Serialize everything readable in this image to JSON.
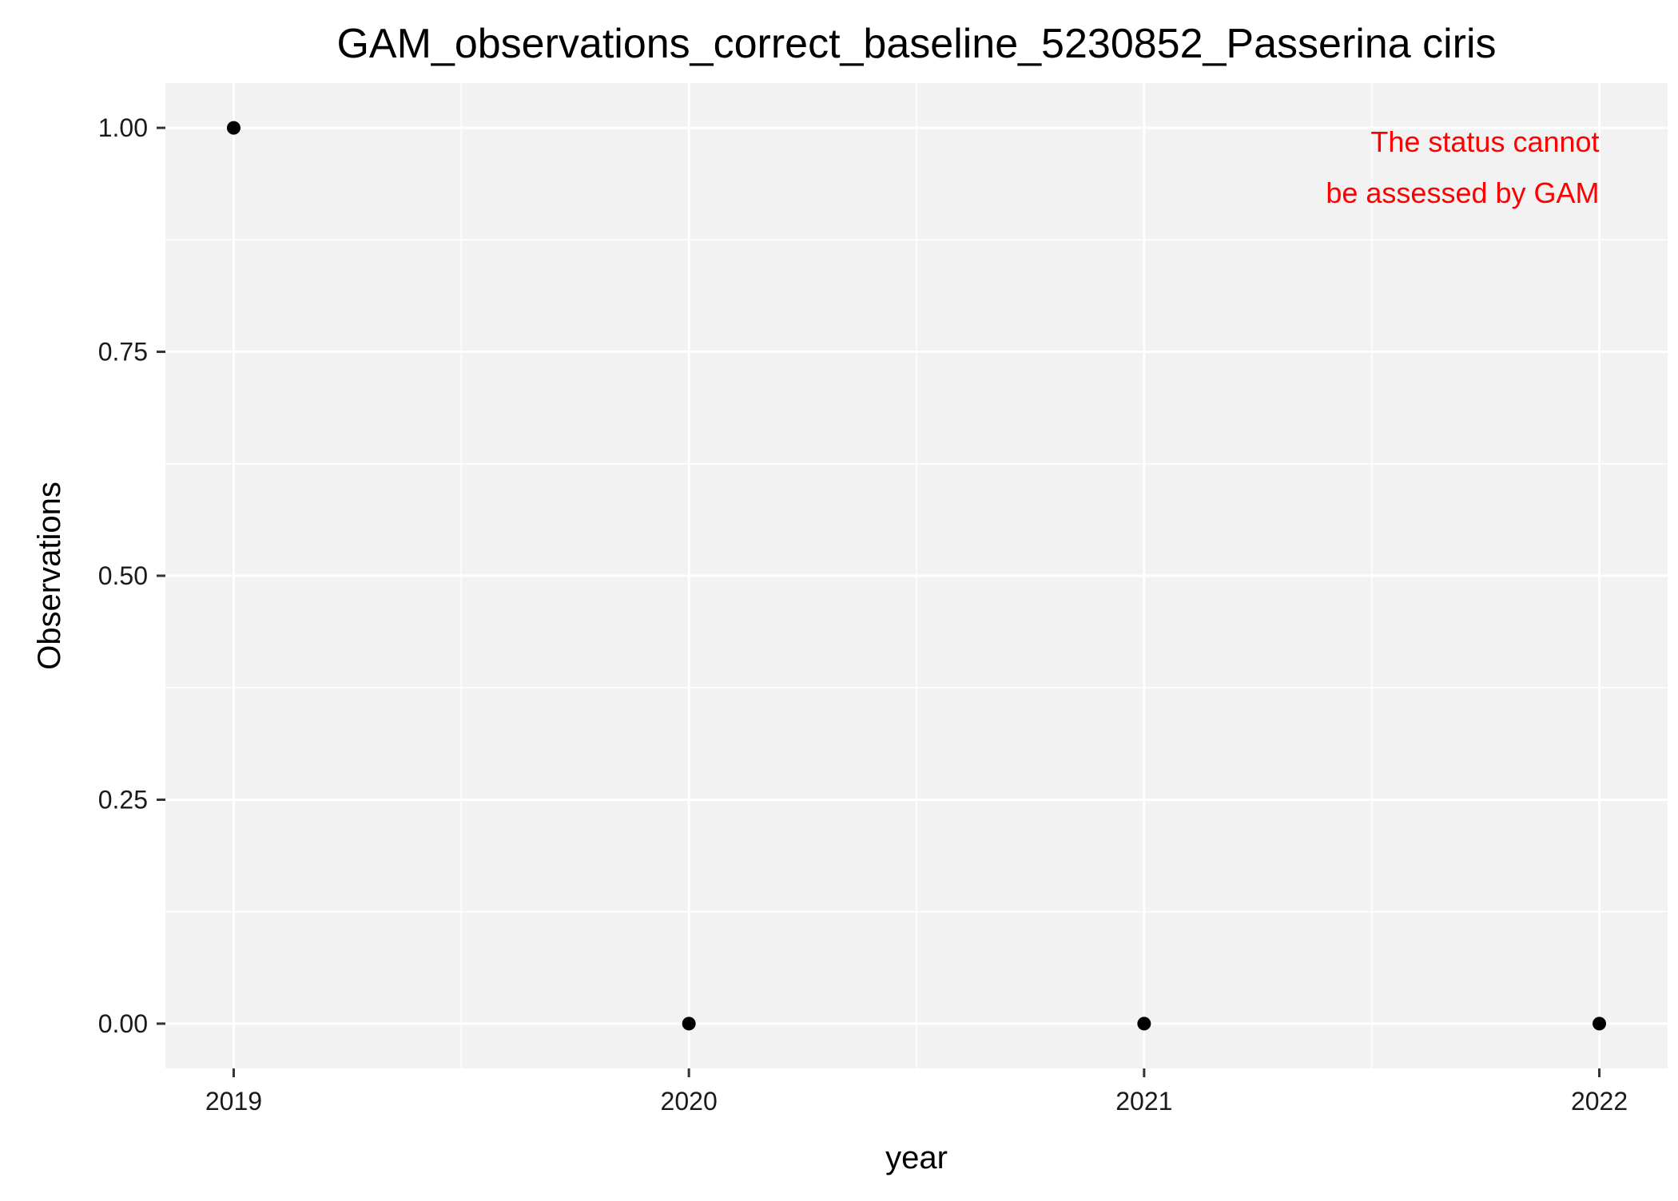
{
  "chart_data": {
    "type": "scatter",
    "title": "GAM_observations_correct_baseline_5230852_Passerina ciris",
    "xlabel": "year",
    "ylabel": "Observations",
    "x": [
      2019,
      2020,
      2021,
      2022
    ],
    "y": [
      1,
      0,
      0,
      0
    ],
    "xlim": [
      2018.85,
      2022.15
    ],
    "ylim": [
      -0.05,
      1.05
    ],
    "x_ticks": [
      2019,
      2020,
      2021,
      2022
    ],
    "x_tick_labels": [
      "2019",
      "2020",
      "2021",
      "2022"
    ],
    "y_ticks": [
      0,
      0.25,
      0.5,
      0.75,
      1
    ],
    "y_tick_labels": [
      "0.00",
      "0.25",
      "0.50",
      "0.75",
      "1.00"
    ],
    "grid": true,
    "annotation": {
      "lines": [
        "The status cannot",
        "be assessed by GAM"
      ],
      "color": "#ff0000",
      "placement": "top-right"
    },
    "colors": {
      "panel_background": "#f2f2f2",
      "grid": "#ffffff",
      "point": "#000000"
    }
  }
}
